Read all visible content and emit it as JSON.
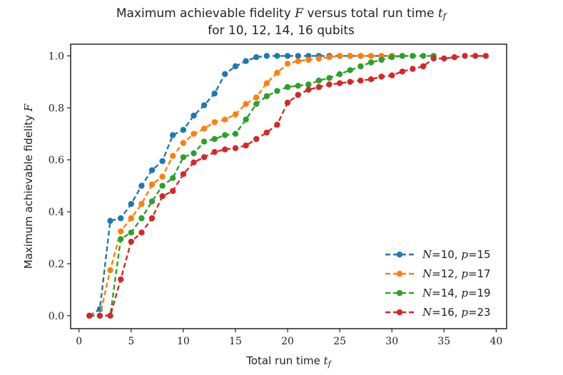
{
  "chart_data": {
    "type": "line",
    "title_lines": [
      [
        "Maximum achievable fidelity ",
        "F",
        " versus total run time ",
        "t",
        "f",
        ""
      ],
      [
        "for 10, 12, 14, 16 qubits"
      ]
    ],
    "xlabel_parts": [
      "Total run time ",
      "t",
      "f"
    ],
    "ylabel_parts": [
      "Maximum achievable fidelity ",
      "F"
    ],
    "xlim": [
      -0.8,
      41
    ],
    "ylim": [
      -0.05,
      1.045
    ],
    "xticks": [
      0,
      5,
      10,
      15,
      20,
      25,
      30,
      35,
      40
    ],
    "xtick_labels": [
      "0",
      "5",
      "10",
      "15",
      "20",
      "25",
      "30",
      "35",
      "40"
    ],
    "yticks": [
      0.0,
      0.2,
      0.4,
      0.6,
      0.8,
      1.0
    ],
    "ytick_labels": [
      "0.0",
      "0.2",
      "0.4",
      "0.6",
      "0.8",
      "1.0"
    ],
    "grid": false,
    "legend_position": "lower-right",
    "series": [
      {
        "name": "N=10, p=15",
        "legend": [
          "N",
          "=10, ",
          "p",
          "=15"
        ],
        "color": "#1f77b4",
        "x": [
          1,
          2,
          3,
          4,
          5,
          6,
          7,
          8,
          9,
          10,
          11,
          12,
          13,
          14,
          15,
          16,
          17,
          18,
          19,
          20,
          21,
          22,
          23,
          24,
          25,
          26,
          27,
          28,
          29,
          30
        ],
        "y": [
          0.0,
          0.025,
          0.365,
          0.375,
          0.43,
          0.5,
          0.56,
          0.595,
          0.695,
          0.715,
          0.77,
          0.81,
          0.855,
          0.93,
          0.96,
          0.98,
          0.995,
          1.0,
          1.0,
          1.0,
          1.0,
          1.0,
          1.0,
          1.0,
          1.0,
          1.0,
          1.0,
          1.0,
          1.0,
          1.0
        ]
      },
      {
        "name": "N=12, p=17",
        "legend": [
          "N",
          "=12, ",
          "p",
          "=17"
        ],
        "color": "#ff7f0e",
        "x": [
          1,
          2,
          3,
          4,
          5,
          6,
          7,
          8,
          9,
          10,
          11,
          12,
          13,
          14,
          15,
          16,
          17,
          18,
          19,
          20,
          21,
          22,
          23,
          24,
          25,
          26,
          27,
          28,
          29,
          30,
          31,
          32
        ],
        "y": [
          0.0,
          0.0,
          0.175,
          0.325,
          0.375,
          0.43,
          0.505,
          0.535,
          0.615,
          0.665,
          0.7,
          0.72,
          0.745,
          0.755,
          0.775,
          0.815,
          0.84,
          0.895,
          0.935,
          0.97,
          0.98,
          0.985,
          0.99,
          0.995,
          1.0,
          1.0,
          1.0,
          1.0,
          1.0,
          1.0,
          1.0,
          1.0
        ]
      },
      {
        "name": "N=14, p=19",
        "legend": [
          "N",
          "=14, ",
          "p",
          "=19"
        ],
        "color": "#2ca02c",
        "x": [
          1,
          2,
          3,
          4,
          5,
          6,
          7,
          8,
          9,
          10,
          11,
          12,
          13,
          14,
          15,
          16,
          17,
          18,
          19,
          20,
          21,
          22,
          23,
          24,
          25,
          26,
          27,
          28,
          29,
          30,
          31,
          32,
          33,
          34
        ],
        "y": [
          0.0,
          0.0,
          0.0,
          0.295,
          0.32,
          0.375,
          0.44,
          0.5,
          0.53,
          0.61,
          0.625,
          0.67,
          0.68,
          0.695,
          0.7,
          0.755,
          0.815,
          0.845,
          0.865,
          0.88,
          0.885,
          0.89,
          0.905,
          0.915,
          0.93,
          0.945,
          0.96,
          0.975,
          0.985,
          0.995,
          1.0,
          1.0,
          1.0,
          1.0
        ]
      },
      {
        "name": "N=16, p=23",
        "legend": [
          "N",
          "=16, ",
          "p",
          "=23"
        ],
        "color": "#d62728",
        "x": [
          1,
          2,
          3,
          4,
          5,
          6,
          7,
          8,
          9,
          10,
          11,
          12,
          13,
          14,
          15,
          16,
          17,
          18,
          19,
          20,
          21,
          22,
          23,
          24,
          25,
          26,
          27,
          28,
          29,
          30,
          31,
          32,
          33,
          34,
          35,
          36,
          37,
          38,
          39
        ],
        "y": [
          0.0,
          0.0,
          0.0,
          0.14,
          0.285,
          0.32,
          0.375,
          0.46,
          0.48,
          0.545,
          0.59,
          0.61,
          0.63,
          0.64,
          0.645,
          0.655,
          0.68,
          0.705,
          0.735,
          0.82,
          0.85,
          0.87,
          0.88,
          0.89,
          0.895,
          0.9,
          0.905,
          0.91,
          0.92,
          0.925,
          0.94,
          0.95,
          0.96,
          0.99,
          0.99,
          0.995,
          1.0,
          1.0,
          1.0
        ]
      }
    ]
  }
}
